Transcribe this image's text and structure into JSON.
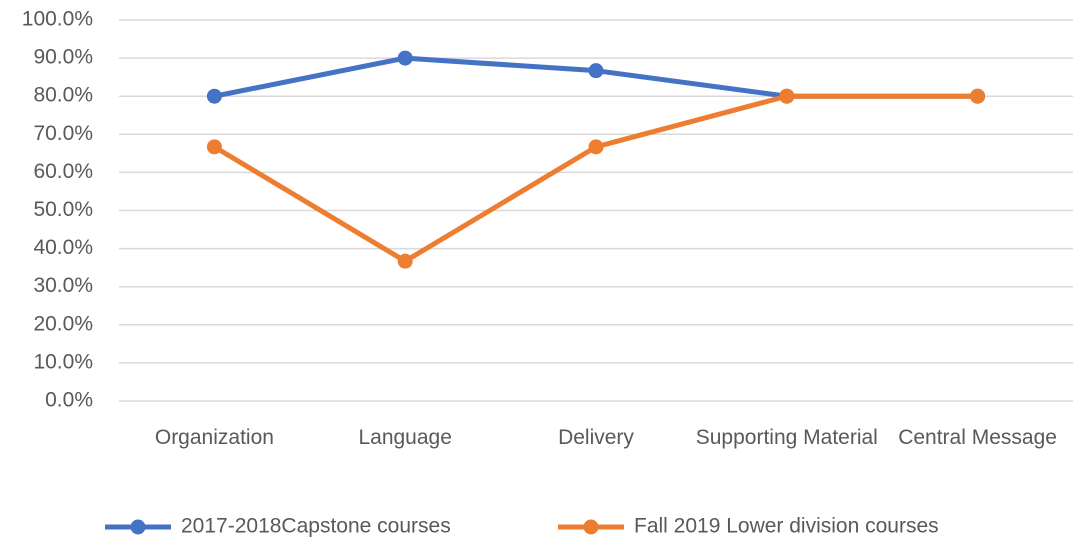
{
  "chart_data": {
    "type": "line",
    "categories": [
      "Organization",
      "Language",
      "Delivery",
      "Supporting Material",
      "Central Message"
    ],
    "series": [
      {
        "name": "2017-2018Capstone courses",
        "color": "#4472c4",
        "values": [
          80,
          90,
          86.7,
          80,
          80
        ]
      },
      {
        "name": "Fall 2019 Lower division courses",
        "color": "#ed7d31",
        "values": [
          66.7,
          36.7,
          66.7,
          80,
          80
        ]
      }
    ],
    "ylim": [
      0,
      100
    ],
    "yticks": [
      {
        "value": 0,
        "label": "0.0%"
      },
      {
        "value": 10,
        "label": "10.0%"
      },
      {
        "value": 20,
        "label": "20.0%"
      },
      {
        "value": 30,
        "label": "30.0%"
      },
      {
        "value": 40,
        "label": "40.0%"
      },
      {
        "value": 50,
        "label": "50.0%"
      },
      {
        "value": 60,
        "label": "60.0%"
      },
      {
        "value": 70,
        "label": "70.0%"
      },
      {
        "value": 80,
        "label": "80.0%"
      },
      {
        "value": 90,
        "label": "90.0%"
      },
      {
        "value": 100,
        "label": "100.0%"
      }
    ],
    "grid": true,
    "legend": "bottom"
  }
}
